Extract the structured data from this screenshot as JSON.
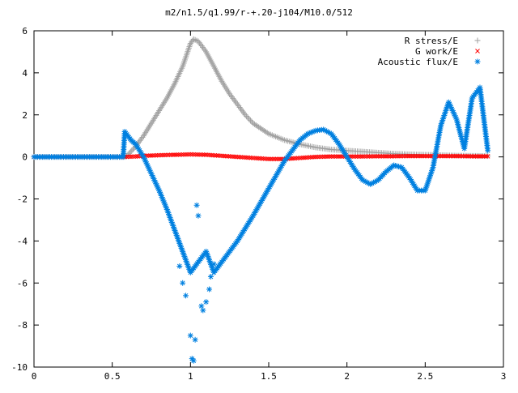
{
  "chart_data": {
    "type": "scatter",
    "title": "m2/n1.5/q1.99/r-+.20-j104/M10.0/512",
    "xlabel": "",
    "ylabel": "",
    "xlim": [
      0,
      3
    ],
    "ylim": [
      -10,
      6
    ],
    "xticks": [
      {
        "value": 0,
        "label": "0"
      },
      {
        "value": 0.5,
        "label": "0.5"
      },
      {
        "value": 1,
        "label": "1"
      },
      {
        "value": 1.5,
        "label": "1.5"
      },
      {
        "value": 2,
        "label": "2"
      },
      {
        "value": 2.5,
        "label": "2.5"
      },
      {
        "value": 3,
        "label": "3"
      }
    ],
    "yticks": [
      {
        "value": 6,
        "label": "6"
      },
      {
        "value": 4,
        "label": "4"
      },
      {
        "value": 2,
        "label": "2"
      },
      {
        "value": 0,
        "label": "0"
      },
      {
        "value": -2,
        "label": "-2"
      },
      {
        "value": -4,
        "label": "-4"
      },
      {
        "value": -6,
        "label": "-6"
      },
      {
        "value": -8,
        "label": "-8"
      },
      {
        "value": -10,
        "label": "-10"
      }
    ],
    "grid": false,
    "legend_position": "top-right",
    "series": [
      {
        "name": "R stress/E",
        "marker": "plus",
        "color": "#a0a0a0",
        "x": [
          0.0,
          0.1,
          0.2,
          0.3,
          0.4,
          0.5,
          0.58,
          0.6,
          0.65,
          0.7,
          0.75,
          0.8,
          0.85,
          0.9,
          0.95,
          1.0,
          1.02,
          1.05,
          1.1,
          1.15,
          1.2,
          1.25,
          1.3,
          1.35,
          1.4,
          1.5,
          1.6,
          1.7,
          1.8,
          1.9,
          2.0,
          2.1,
          2.2,
          2.3,
          2.4,
          2.5,
          2.6,
          2.7,
          2.8,
          2.9
        ],
        "y": [
          0.0,
          0.0,
          0.0,
          0.0,
          0.0,
          0.0,
          0.0,
          0.1,
          0.5,
          1.0,
          1.6,
          2.2,
          2.8,
          3.5,
          4.3,
          5.4,
          5.6,
          5.5,
          5.0,
          4.3,
          3.6,
          3.0,
          2.5,
          2.0,
          1.6,
          1.1,
          0.8,
          0.6,
          0.45,
          0.35,
          0.3,
          0.25,
          0.2,
          0.15,
          0.12,
          0.1,
          0.08,
          0.06,
          0.05,
          0.04
        ]
      },
      {
        "name": "G work/E",
        "marker": "cross",
        "color": "#ff0000",
        "x": [
          0.0,
          0.1,
          0.2,
          0.3,
          0.4,
          0.5,
          0.58,
          0.65,
          0.7,
          0.8,
          0.9,
          1.0,
          1.1,
          1.2,
          1.3,
          1.4,
          1.5,
          1.6,
          1.7,
          1.8,
          1.9,
          2.0,
          2.1,
          2.2,
          2.3,
          2.4,
          2.5,
          2.6,
          2.7,
          2.8,
          2.9
        ],
        "y": [
          0.0,
          0.0,
          0.0,
          0.0,
          0.0,
          0.0,
          0.0,
          0.02,
          0.05,
          0.08,
          0.1,
          0.12,
          0.1,
          0.05,
          0.0,
          -0.05,
          -0.1,
          -0.1,
          -0.05,
          0.0,
          0.02,
          0.02,
          0.02,
          0.03,
          0.03,
          0.04,
          0.04,
          0.04,
          0.04,
          0.03,
          0.03
        ]
      },
      {
        "name": "Acoustic flux/E",
        "marker": "star",
        "color": "#0080e0",
        "x": [
          0.0,
          0.1,
          0.2,
          0.3,
          0.4,
          0.5,
          0.57,
          0.58,
          0.6,
          0.62,
          0.65,
          0.7,
          0.75,
          0.8,
          0.85,
          0.9,
          0.95,
          1.0,
          1.05,
          1.1,
          1.15,
          1.2,
          1.3,
          1.4,
          1.5,
          1.6,
          1.7,
          1.75,
          1.8,
          1.85,
          1.9,
          1.95,
          2.0,
          2.05,
          2.1,
          2.15,
          2.2,
          2.25,
          2.3,
          2.35,
          2.4,
          2.45,
          2.5,
          2.55,
          2.6,
          2.65,
          2.7,
          2.75,
          2.8,
          2.85,
          2.9
        ],
        "y": [
          0.0,
          0.0,
          0.0,
          0.0,
          0.0,
          0.0,
          0.0,
          1.2,
          1.0,
          0.8,
          0.6,
          0.0,
          -0.8,
          -1.6,
          -2.5,
          -3.5,
          -4.5,
          -5.5,
          -5.0,
          -4.5,
          -5.5,
          -5.0,
          -4.0,
          -2.8,
          -1.5,
          -0.2,
          0.8,
          1.1,
          1.25,
          1.3,
          1.1,
          0.6,
          0.0,
          -0.6,
          -1.1,
          -1.3,
          -1.1,
          -0.7,
          -0.4,
          -0.5,
          -1.0,
          -1.6,
          -1.6,
          -0.5,
          1.5,
          2.6,
          1.8,
          0.4,
          2.8,
          3.3,
          0.3
        ]
      },
      {
        "name": "",
        "marker": "star",
        "color": "#0080e0",
        "x": [
          0.93,
          0.95,
          0.97,
          1.0,
          1.01,
          1.02,
          1.03,
          1.04,
          1.05,
          1.07,
          1.08,
          1.1,
          1.12,
          1.13,
          1.15
        ],
        "y": [
          -5.2,
          -6.0,
          -6.6,
          -8.5,
          -9.6,
          -9.7,
          -8.7,
          -2.3,
          -2.8,
          -7.1,
          -7.3,
          -6.9,
          -6.3,
          -5.7,
          -5.1
        ]
      }
    ]
  }
}
